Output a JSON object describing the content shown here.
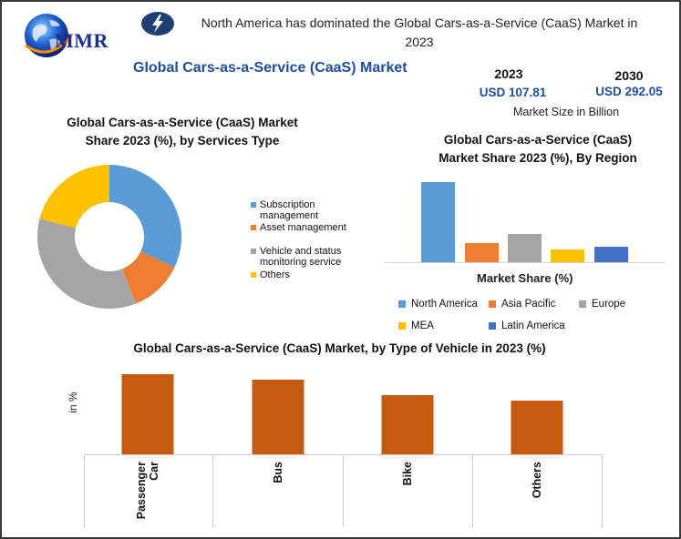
{
  "header": {
    "logo_text": "MMR",
    "headline": "North America has dominated the Global Cars-as-a-Service (CaaS) Market in 2023",
    "main_title": "Global Cars-as-a-Service (CaaS) Market"
  },
  "market_size": {
    "year_2023": "2023",
    "value_2023": "USD 107.81",
    "year_2030": "2030",
    "value_2030": "USD 292.05",
    "label": "Market Size in Billion"
  },
  "colors": {
    "blue": "#5b9bd5",
    "orange": "#ed7d31",
    "gray": "#a5a5a5",
    "yellow": "#ffc000",
    "darkblue": "#4472c4",
    "rust": "#c55a11",
    "title_blue": "#1f4e9a"
  },
  "icons": {
    "logo": "globe-icon",
    "headline": "lightning-bolt-icon"
  },
  "chart_data": [
    {
      "type": "pie",
      "title": "Global Cars-as-a-Service (CaaS) Market Share 2023 (%), by Services Type",
      "title_lines": [
        "Global Cars-as-a-Service (CaaS) Market",
        "Share 2023 (%), by Services Type"
      ],
      "donut": true,
      "categories": [
        "Subscription management",
        "Asset management",
        "Vehicle and status monitoring service",
        "Others"
      ],
      "legend_lines": [
        [
          "Subscription",
          "management"
        ],
        [
          "Asset management"
        ],
        [
          "Vehicle and status",
          "monitoring service"
        ],
        [
          "Others"
        ]
      ],
      "values": [
        32,
        12,
        35,
        21
      ],
      "colors": [
        "#5b9bd5",
        "#ed7d31",
        "#a5a5a5",
        "#ffc000"
      ],
      "legend": "right"
    },
    {
      "type": "bar",
      "title": "Global Cars-as-a-Service (CaaS) Market Share 2023 (%), By Region",
      "title_lines": [
        "Global Cars-as-a-Service (CaaS)",
        "Market Share 2023 (%), By Region"
      ],
      "xlabel": "Market Share (%)",
      "categories": [
        "North America",
        "Asia Pacific",
        "Europe",
        "MEA",
        "Latin America"
      ],
      "values": [
        88,
        21,
        31,
        14,
        17
      ],
      "colors": [
        "#5b9bd5",
        "#ed7d31",
        "#a5a5a5",
        "#ffc000",
        "#4472c4"
      ],
      "ylim": [
        0,
        100
      ],
      "legend": "bottom"
    },
    {
      "type": "bar",
      "title": "Global Cars-as-a-Service (CaaS) Market, by Type of Vehicle in 2023 (%)",
      "ylabel": "in %",
      "categories": [
        "Passenger Car",
        "Bus",
        "Bike",
        "Others"
      ],
      "category_lines": [
        [
          "Passenger",
          "Car"
        ],
        [
          "Bus"
        ],
        [
          "Bike"
        ],
        [
          "Others"
        ]
      ],
      "values": [
        88,
        82,
        65,
        59
      ],
      "color": "#c55a11",
      "ylim": [
        0,
        100
      ]
    }
  ]
}
